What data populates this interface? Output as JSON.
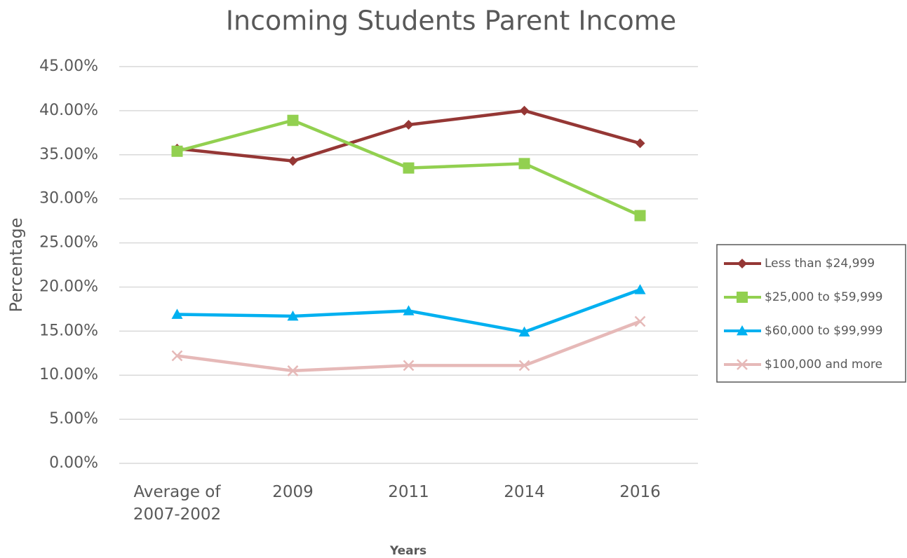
{
  "chart_data": {
    "type": "line",
    "title": "Incoming Students Parent Income",
    "x_label": "Years",
    "y_label": "Percentage",
    "categories": [
      "Average of 2007-2002",
      "2009",
      "2011",
      "2014",
      "2016"
    ],
    "series": [
      {
        "name": "Less than $24,999",
        "color": "#953735",
        "marker": "diamond",
        "values": [
          35.7,
          34.3,
          38.4,
          40.0,
          36.3
        ]
      },
      {
        "name": "$25,000 to $59,999",
        "color": "#92d050",
        "marker": "square",
        "values": [
          35.4,
          38.9,
          33.5,
          34.0,
          28.1
        ]
      },
      {
        "name": "$60,000 to $99,999",
        "color": "#00b0f0",
        "marker": "triangle",
        "values": [
          16.9,
          16.7,
          17.3,
          14.9,
          19.7
        ]
      },
      {
        "name": "$100,000 and more",
        "color": "#e6b9b8",
        "marker": "x",
        "values": [
          12.2,
          10.5,
          11.1,
          11.1,
          16.1
        ]
      }
    ],
    "ylim": [
      0,
      45
    ],
    "yticks": [
      {
        "value": 0,
        "label": "0.00%"
      },
      {
        "value": 5,
        "label": "5.00%"
      },
      {
        "value": 10,
        "label": "10.00%"
      },
      {
        "value": 15,
        "label": "15.00%"
      },
      {
        "value": 20,
        "label": "20.00%"
      },
      {
        "value": 25,
        "label": "25.00%"
      },
      {
        "value": 30,
        "label": "30.00%"
      },
      {
        "value": 35,
        "label": "35.00%"
      },
      {
        "value": 40,
        "label": "40.00%"
      },
      {
        "value": 45,
        "label": "45.00%"
      }
    ],
    "grid": true,
    "legend": "right"
  }
}
